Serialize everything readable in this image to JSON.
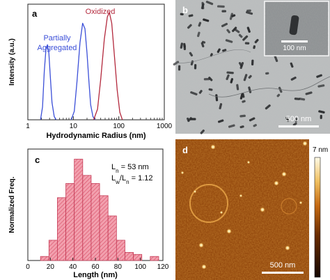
{
  "panels": {
    "a": {
      "letter": "a",
      "xlabel": "Hydrodynamic Radius (nm)",
      "ylabel": "Intensity (a.u.)",
      "x_ticks": [
        "1",
        "10",
        "100",
        "1000"
      ],
      "annotation_oxidized": "Oxidized",
      "annotation_partial_line1": "Partially",
      "annotation_partial_line2": "Aggregated"
    },
    "b": {
      "letter": "b",
      "inset_scale": "100 nm",
      "scale": "500 nm"
    },
    "c": {
      "letter": "c",
      "xlabel": "Length (nm)",
      "ylabel": "Normalized Freq.",
      "ln_label": "L",
      "ln_sub": "n",
      "ln_value": " = 53 nm",
      "lw_label": "L",
      "lw_sub": "w",
      "lw_slash": "/L",
      "lw_sub2": "n",
      "lw_value": " = 1.12"
    },
    "d": {
      "letter": "d",
      "scale": "500 nm",
      "colorbar_max": "7 nm"
    }
  },
  "chart_data": [
    {
      "type": "line",
      "panel": "a",
      "xscale": "log",
      "xlim": [
        1,
        1000
      ],
      "xlabel": "Hydrodynamic Radius (nm)",
      "ylabel": "Intensity (a.u.)",
      "series": [
        {
          "x": [
            1.9,
            2.1,
            2.3,
            2.5,
            2.7,
            2.9,
            3.1,
            3.4,
            3.8,
            4.2
          ],
          "y": [
            0,
            0.12,
            0.45,
            0.66,
            0.7,
            0.62,
            0.42,
            0.16,
            0.03,
            0
          ],
          "color": "#3b4fd8"
        },
        {
          "x": [
            9,
            10.5,
            12,
            14,
            16,
            18,
            20,
            22,
            24,
            27,
            30
          ],
          "y": [
            0,
            0.08,
            0.35,
            0.72,
            0.9,
            0.85,
            0.62,
            0.36,
            0.14,
            0.03,
            0
          ],
          "color": "#3b4fd8"
        },
        {
          "x": [
            28,
            34,
            40,
            48,
            56,
            62,
            70,
            80,
            92,
            105,
            120
          ],
          "y": [
            0,
            0.1,
            0.38,
            0.75,
            0.96,
            1.0,
            0.9,
            0.6,
            0.28,
            0.07,
            0
          ],
          "color": "#b3283c"
        }
      ]
    },
    {
      "type": "bar",
      "panel": "c",
      "xlabel": "Length (nm)",
      "ylabel": "Normalized Freq.",
      "xlim": [
        0,
        120
      ],
      "x_ticks": [
        0,
        20,
        40,
        60,
        80,
        100,
        120
      ],
      "bin_width": 7.5,
      "bins": [
        15,
        22.5,
        30,
        37.5,
        45,
        52.5,
        60,
        67.5,
        75,
        82.5,
        90,
        97.5,
        105,
        112.5
      ],
      "values": [
        0.02,
        0.1,
        0.31,
        0.38,
        0.5,
        0.42,
        0.38,
        0.32,
        0.22,
        0.1,
        0.04,
        0.03,
        0,
        0.02
      ],
      "ylim": [
        0,
        0.55
      ]
    }
  ]
}
